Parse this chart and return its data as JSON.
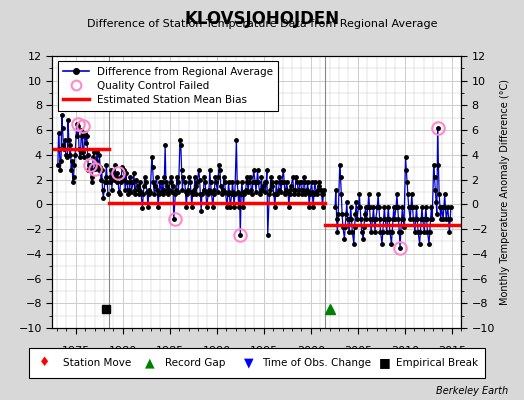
{
  "title": "KLOVSJOHOJDEN",
  "subtitle": "Difference of Station Temperature Data from Regional Average",
  "ylabel_right": "Monthly Temperature Anomaly Difference (°C)",
  "credit": "Berkeley Earth",
  "xlim": [
    1972.5,
    2016.0
  ],
  "ylim": [
    -10,
    12
  ],
  "yticks": [
    -10,
    -8,
    -6,
    -4,
    -2,
    0,
    2,
    4,
    6,
    8,
    10,
    12
  ],
  "xticks": [
    1975,
    1980,
    1985,
    1990,
    1995,
    2000,
    2005,
    2010,
    2015
  ],
  "bg_color": "#d8d8d8",
  "plot_bg_color": "#ffffff",
  "grid_color": "#cccccc",
  "segment1_bias": 4.5,
  "segment1_start": 1972.5,
  "segment1_end": 1978.5,
  "segment2_bias": 0.15,
  "segment2_start": 1978.5,
  "segment2_end": 2001.5,
  "segment3_bias": -1.7,
  "segment3_start": 2001.5,
  "segment3_end": 2016.0,
  "vertical_line1": 1978.5,
  "vertical_line2": 2001.5,
  "empirical_break_x": 1978.25,
  "record_gap_x": 2002.0,
  "line_color": "#0000cc",
  "dot_color": "#000000",
  "qc_failed_points": [
    [
      1975.25,
      6.5
    ],
    [
      1975.75,
      6.3
    ],
    [
      1976.5,
      3.2
    ],
    [
      1977.0,
      2.9
    ],
    [
      1979.5,
      2.5
    ],
    [
      1985.5,
      -1.2
    ],
    [
      1992.5,
      -2.5
    ],
    [
      2009.5,
      -3.5
    ],
    [
      2013.5,
      6.2
    ]
  ],
  "seg1_data": [
    [
      1973.083,
      3.2
    ],
    [
      1973.167,
      5.8
    ],
    [
      1973.25,
      4.5
    ],
    [
      1973.333,
      2.8
    ],
    [
      1973.417,
      3.5
    ],
    [
      1973.5,
      7.2
    ],
    [
      1973.583,
      6.2
    ],
    [
      1973.667,
      4.8
    ],
    [
      1973.75,
      4.5
    ],
    [
      1973.833,
      5.2
    ],
    [
      1973.917,
      4.0
    ],
    [
      1974.083,
      3.8
    ],
    [
      1974.167,
      6.8
    ],
    [
      1974.25,
      5.2
    ],
    [
      1974.333,
      4.0
    ],
    [
      1974.417,
      4.8
    ],
    [
      1974.5,
      2.8
    ],
    [
      1974.583,
      3.5
    ],
    [
      1974.667,
      1.8
    ],
    [
      1974.75,
      2.2
    ],
    [
      1974.833,
      3.2
    ],
    [
      1974.917,
      4.0
    ],
    [
      1975.083,
      6.5
    ],
    [
      1975.167,
      5.5
    ],
    [
      1975.25,
      6.3
    ],
    [
      1975.333,
      4.5
    ],
    [
      1975.417,
      3.8
    ],
    [
      1975.5,
      4.2
    ],
    [
      1975.583,
      6.0
    ],
    [
      1975.667,
      5.5
    ],
    [
      1975.75,
      4.2
    ],
    [
      1975.833,
      3.8
    ],
    [
      1975.917,
      5.8
    ],
    [
      1976.083,
      5.0
    ],
    [
      1976.167,
      5.5
    ],
    [
      1976.25,
      4.0
    ],
    [
      1976.333,
      2.8
    ],
    [
      1976.417,
      3.2
    ],
    [
      1976.5,
      3.2
    ],
    [
      1976.583,
      2.8
    ],
    [
      1976.667,
      1.8
    ],
    [
      1976.75,
      2.2
    ],
    [
      1976.833,
      3.8
    ],
    [
      1976.917,
      4.2
    ],
    [
      1977.083,
      2.9
    ],
    [
      1977.167,
      3.5
    ],
    [
      1977.25,
      4.2
    ],
    [
      1977.333,
      3.2
    ],
    [
      1977.417,
      2.8
    ],
    [
      1977.5,
      4.0
    ],
    [
      1977.583,
      3.0
    ],
    [
      1977.667,
      2.0
    ],
    [
      1977.75,
      2.8
    ],
    [
      1977.833,
      1.2
    ],
    [
      1977.917,
      0.5
    ],
    [
      1978.083,
      1.8
    ],
    [
      1978.167,
      2.2
    ],
    [
      1978.25,
      3.2
    ],
    [
      1978.333,
      1.8
    ],
    [
      1978.417,
      0.8
    ]
  ],
  "seg2_data": [
    [
      1978.583,
      2.2
    ],
    [
      1978.667,
      1.8
    ],
    [
      1978.75,
      2.8
    ],
    [
      1978.833,
      1.2
    ],
    [
      1978.917,
      2.5
    ],
    [
      1979.083,
      2.0
    ],
    [
      1979.167,
      3.2
    ],
    [
      1979.25,
      2.2
    ],
    [
      1979.333,
      1.8
    ],
    [
      1979.417,
      2.5
    ],
    [
      1979.583,
      1.0
    ],
    [
      1979.667,
      0.8
    ],
    [
      1979.75,
      1.8
    ],
    [
      1979.833,
      2.2
    ],
    [
      1979.917,
      3.0
    ],
    [
      1980.083,
      2.8
    ],
    [
      1980.167,
      2.0
    ],
    [
      1980.25,
      1.2
    ],
    [
      1980.333,
      2.5
    ],
    [
      1980.417,
      1.8
    ],
    [
      1980.583,
      0.8
    ],
    [
      1980.667,
      1.2
    ],
    [
      1980.75,
      2.2
    ],
    [
      1980.833,
      1.8
    ],
    [
      1980.917,
      1.0
    ],
    [
      1981.083,
      1.8
    ],
    [
      1981.167,
      2.5
    ],
    [
      1981.25,
      1.2
    ],
    [
      1981.333,
      0.8
    ],
    [
      1981.417,
      2.0
    ],
    [
      1981.583,
      1.5
    ],
    [
      1981.667,
      0.8
    ],
    [
      1981.75,
      1.2
    ],
    [
      1981.833,
      1.8
    ],
    [
      1981.917,
      1.0
    ],
    [
      1982.083,
      -0.3
    ],
    [
      1982.167,
      0.8
    ],
    [
      1982.25,
      1.5
    ],
    [
      1982.333,
      2.2
    ],
    [
      1982.417,
      1.8
    ],
    [
      1982.583,
      1.0
    ],
    [
      1982.667,
      -0.2
    ],
    [
      1982.75,
      0.8
    ],
    [
      1982.833,
      1.2
    ],
    [
      1982.917,
      1.0
    ],
    [
      1983.083,
      3.8
    ],
    [
      1983.167,
      3.0
    ],
    [
      1983.25,
      1.8
    ],
    [
      1983.333,
      0.8
    ],
    [
      1983.417,
      1.5
    ],
    [
      1983.583,
      2.2
    ],
    [
      1983.667,
      1.2
    ],
    [
      1983.75,
      -0.2
    ],
    [
      1983.833,
      0.8
    ],
    [
      1983.917,
      1.8
    ],
    [
      1984.083,
      1.0
    ],
    [
      1984.167,
      1.8
    ],
    [
      1984.25,
      0.8
    ],
    [
      1984.333,
      1.2
    ],
    [
      1984.417,
      2.2
    ],
    [
      1984.5,
      4.8
    ],
    [
      1984.583,
      1.8
    ],
    [
      1984.667,
      1.0
    ],
    [
      1984.75,
      1.5
    ],
    [
      1984.833,
      0.8
    ],
    [
      1984.917,
      1.2
    ],
    [
      1985.083,
      2.2
    ],
    [
      1985.167,
      1.8
    ],
    [
      1985.25,
      1.0
    ],
    [
      1985.333,
      1.5
    ],
    [
      1985.417,
      -1.2
    ],
    [
      1985.583,
      0.8
    ],
    [
      1985.667,
      1.2
    ],
    [
      1985.75,
      2.2
    ],
    [
      1985.833,
      1.8
    ],
    [
      1985.917,
      1.0
    ],
    [
      1986.083,
      5.2
    ],
    [
      1986.167,
      4.8
    ],
    [
      1986.25,
      2.8
    ],
    [
      1986.333,
      1.2
    ],
    [
      1986.417,
      2.2
    ],
    [
      1986.583,
      1.8
    ],
    [
      1986.667,
      1.0
    ],
    [
      1986.75,
      -0.2
    ],
    [
      1986.833,
      0.8
    ],
    [
      1986.917,
      1.2
    ],
    [
      1987.083,
      2.2
    ],
    [
      1987.167,
      1.8
    ],
    [
      1987.25,
      1.0
    ],
    [
      1987.333,
      -0.2
    ],
    [
      1987.417,
      0.8
    ],
    [
      1987.583,
      1.2
    ],
    [
      1987.667,
      2.2
    ],
    [
      1987.75,
      1.5
    ],
    [
      1987.833,
      0.8
    ],
    [
      1987.917,
      1.8
    ],
    [
      1988.083,
      2.8
    ],
    [
      1988.167,
      2.0
    ],
    [
      1988.25,
      0.8
    ],
    [
      1988.333,
      -0.5
    ],
    [
      1988.417,
      0.8
    ],
    [
      1988.583,
      1.2
    ],
    [
      1988.667,
      2.2
    ],
    [
      1988.75,
      1.8
    ],
    [
      1988.833,
      1.0
    ],
    [
      1988.917,
      -0.2
    ],
    [
      1989.083,
      0.8
    ],
    [
      1989.167,
      1.2
    ],
    [
      1989.25,
      2.8
    ],
    [
      1989.333,
      1.8
    ],
    [
      1989.417,
      1.0
    ],
    [
      1989.583,
      -0.2
    ],
    [
      1989.667,
      0.8
    ],
    [
      1989.75,
      1.2
    ],
    [
      1989.833,
      2.2
    ],
    [
      1989.917,
      1.8
    ],
    [
      1990.083,
      1.0
    ],
    [
      1990.167,
      2.2
    ],
    [
      1990.25,
      3.2
    ],
    [
      1990.333,
      2.8
    ],
    [
      1990.417,
      1.5
    ],
    [
      1990.583,
      0.8
    ],
    [
      1990.667,
      1.2
    ],
    [
      1990.75,
      2.2
    ],
    [
      1990.833,
      1.8
    ],
    [
      1990.917,
      1.0
    ],
    [
      1991.083,
      -0.2
    ],
    [
      1991.167,
      0.8
    ],
    [
      1991.25,
      1.8
    ],
    [
      1991.333,
      1.0
    ],
    [
      1991.417,
      -0.2
    ],
    [
      1991.583,
      0.8
    ],
    [
      1991.667,
      1.8
    ],
    [
      1991.75,
      1.0
    ],
    [
      1991.833,
      -0.2
    ],
    [
      1991.917,
      0.8
    ],
    [
      1992.083,
      5.2
    ],
    [
      1992.167,
      1.8
    ],
    [
      1992.25,
      1.0
    ],
    [
      1992.333,
      -0.2
    ],
    [
      1992.417,
      0.8
    ],
    [
      1992.5,
      -2.5
    ],
    [
      1992.583,
      0.8
    ],
    [
      1992.667,
      1.8
    ],
    [
      1992.75,
      1.0
    ],
    [
      1992.833,
      -0.2
    ],
    [
      1992.917,
      0.8
    ],
    [
      1993.083,
      1.2
    ],
    [
      1993.167,
      2.2
    ],
    [
      1993.25,
      1.8
    ],
    [
      1993.333,
      1.0
    ],
    [
      1993.417,
      1.8
    ],
    [
      1993.583,
      2.2
    ],
    [
      1993.667,
      1.2
    ],
    [
      1993.75,
      0.8
    ],
    [
      1993.833,
      1.8
    ],
    [
      1993.917,
      2.8
    ],
    [
      1994.083,
      1.8
    ],
    [
      1994.167,
      1.0
    ],
    [
      1994.25,
      1.8
    ],
    [
      1994.333,
      2.8
    ],
    [
      1994.417,
      1.8
    ],
    [
      1994.583,
      0.8
    ],
    [
      1994.667,
      1.2
    ],
    [
      1994.75,
      2.2
    ],
    [
      1994.833,
      1.2
    ],
    [
      1994.917,
      1.5
    ],
    [
      1995.083,
      1.8
    ],
    [
      1995.167,
      1.0
    ],
    [
      1995.25,
      1.8
    ],
    [
      1995.333,
      2.8
    ],
    [
      1995.417,
      -2.5
    ],
    [
      1995.583,
      0.8
    ],
    [
      1995.667,
      1.2
    ],
    [
      1995.75,
      2.2
    ],
    [
      1995.833,
      1.5
    ],
    [
      1995.917,
      1.8
    ],
    [
      1996.083,
      0.8
    ],
    [
      1996.167,
      -0.2
    ],
    [
      1996.25,
      0.8
    ],
    [
      1996.333,
      1.8
    ],
    [
      1996.417,
      0.8
    ],
    [
      1996.583,
      1.2
    ],
    [
      1996.667,
      2.2
    ],
    [
      1996.75,
      1.8
    ],
    [
      1996.833,
      1.0
    ],
    [
      1996.917,
      1.8
    ],
    [
      1997.083,
      2.8
    ],
    [
      1997.167,
      1.8
    ],
    [
      1997.25,
      0.8
    ],
    [
      1997.333,
      1.2
    ],
    [
      1997.417,
      1.8
    ],
    [
      1997.583,
      1.0
    ],
    [
      1997.667,
      -0.2
    ],
    [
      1997.75,
      0.8
    ],
    [
      1997.833,
      1.2
    ],
    [
      1997.917,
      1.5
    ],
    [
      1998.083,
      2.2
    ],
    [
      1998.167,
      1.2
    ],
    [
      1998.25,
      0.8
    ],
    [
      1998.333,
      1.2
    ],
    [
      1998.417,
      2.2
    ],
    [
      1998.583,
      1.8
    ],
    [
      1998.667,
      0.8
    ],
    [
      1998.75,
      1.2
    ],
    [
      1998.833,
      1.8
    ],
    [
      1998.917,
      1.8
    ],
    [
      1999.083,
      0.8
    ],
    [
      1999.167,
      1.2
    ],
    [
      1999.25,
      2.2
    ],
    [
      1999.333,
      1.8
    ],
    [
      1999.417,
      0.8
    ],
    [
      1999.583,
      1.2
    ],
    [
      1999.667,
      1.8
    ],
    [
      1999.75,
      1.0
    ],
    [
      1999.833,
      -0.2
    ],
    [
      1999.917,
      0.8
    ],
    [
      2000.083,
      1.8
    ],
    [
      2000.167,
      1.0
    ],
    [
      2000.25,
      -0.2
    ],
    [
      2000.333,
      0.8
    ],
    [
      2000.417,
      1.8
    ],
    [
      2000.583,
      1.0
    ],
    [
      2000.667,
      0.8
    ],
    [
      2000.75,
      1.2
    ],
    [
      2000.833,
      1.8
    ],
    [
      2000.917,
      1.5
    ],
    [
      2001.083,
      1.2
    ],
    [
      2001.167,
      0.8
    ],
    [
      2001.25,
      -0.2
    ],
    [
      2001.333,
      0.8
    ],
    [
      2001.417,
      1.2
    ]
  ],
  "seg3_data": [
    [
      2002.583,
      -0.2
    ],
    [
      2002.667,
      1.2
    ],
    [
      2002.75,
      -1.2
    ],
    [
      2002.833,
      -2.2
    ],
    [
      2002.917,
      -0.8
    ],
    [
      2003.083,
      3.2
    ],
    [
      2003.167,
      2.2
    ],
    [
      2003.25,
      0.8
    ],
    [
      2003.333,
      -0.8
    ],
    [
      2003.417,
      -1.8
    ],
    [
      2003.583,
      -2.8
    ],
    [
      2003.667,
      -1.8
    ],
    [
      2003.75,
      -0.8
    ],
    [
      2003.833,
      0.2
    ],
    [
      2003.917,
      -1.2
    ],
    [
      2004.083,
      -2.2
    ],
    [
      2004.167,
      -1.2
    ],
    [
      2004.25,
      -0.2
    ],
    [
      2004.333,
      -1.2
    ],
    [
      2004.417,
      -2.2
    ],
    [
      2004.583,
      -3.2
    ],
    [
      2004.667,
      -1.8
    ],
    [
      2004.75,
      -0.8
    ],
    [
      2004.833,
      0.2
    ],
    [
      2004.917,
      -1.2
    ],
    [
      2005.083,
      -0.2
    ],
    [
      2005.167,
      0.8
    ],
    [
      2005.25,
      -0.2
    ],
    [
      2005.333,
      -1.2
    ],
    [
      2005.417,
      -2.2
    ],
    [
      2005.583,
      -2.8
    ],
    [
      2005.667,
      -1.8
    ],
    [
      2005.75,
      -0.8
    ],
    [
      2005.833,
      -0.2
    ],
    [
      2005.917,
      -1.2
    ],
    [
      2006.083,
      -0.2
    ],
    [
      2006.167,
      0.8
    ],
    [
      2006.25,
      -0.2
    ],
    [
      2006.333,
      -1.2
    ],
    [
      2006.417,
      -2.2
    ],
    [
      2006.583,
      -1.2
    ],
    [
      2006.667,
      -0.2
    ],
    [
      2006.75,
      -1.2
    ],
    [
      2006.833,
      -2.2
    ],
    [
      2006.917,
      -1.2
    ],
    [
      2007.083,
      -0.2
    ],
    [
      2007.167,
      0.8
    ],
    [
      2007.25,
      -0.2
    ],
    [
      2007.333,
      -1.2
    ],
    [
      2007.417,
      -2.2
    ],
    [
      2007.583,
      -3.2
    ],
    [
      2007.667,
      -2.2
    ],
    [
      2007.75,
      -1.2
    ],
    [
      2007.833,
      -0.2
    ],
    [
      2007.917,
      -1.2
    ],
    [
      2008.083,
      -2.2
    ],
    [
      2008.167,
      -1.2
    ],
    [
      2008.25,
      -0.2
    ],
    [
      2008.333,
      -1.2
    ],
    [
      2008.417,
      -2.2
    ],
    [
      2008.583,
      -3.2
    ],
    [
      2008.667,
      -2.2
    ],
    [
      2008.75,
      -1.2
    ],
    [
      2008.833,
      -0.2
    ],
    [
      2008.917,
      -1.2
    ],
    [
      2009.083,
      -0.2
    ],
    [
      2009.167,
      0.8
    ],
    [
      2009.25,
      -0.2
    ],
    [
      2009.333,
      -1.2
    ],
    [
      2009.417,
      -2.2
    ],
    [
      2009.5,
      -3.5
    ],
    [
      2009.583,
      -2.2
    ],
    [
      2009.667,
      -1.2
    ],
    [
      2009.75,
      -0.2
    ],
    [
      2009.833,
      -1.2
    ],
    [
      2009.917,
      -1.8
    ],
    [
      2010.083,
      3.8
    ],
    [
      2010.167,
      2.8
    ],
    [
      2010.25,
      1.8
    ],
    [
      2010.333,
      0.8
    ],
    [
      2010.417,
      -0.2
    ],
    [
      2010.583,
      -1.2
    ],
    [
      2010.667,
      -0.2
    ],
    [
      2010.75,
      0.8
    ],
    [
      2010.833,
      -0.2
    ],
    [
      2010.917,
      -1.2
    ],
    [
      2011.083,
      -2.2
    ],
    [
      2011.167,
      -1.2
    ],
    [
      2011.25,
      -0.2
    ],
    [
      2011.333,
      -1.2
    ],
    [
      2011.417,
      -2.2
    ],
    [
      2011.583,
      -3.2
    ],
    [
      2011.667,
      -2.2
    ],
    [
      2011.75,
      -1.2
    ],
    [
      2011.833,
      -0.2
    ],
    [
      2011.917,
      -1.2
    ],
    [
      2012.083,
      -2.2
    ],
    [
      2012.167,
      -1.2
    ],
    [
      2012.25,
      -0.2
    ],
    [
      2012.333,
      -1.2
    ],
    [
      2012.417,
      -2.2
    ],
    [
      2012.583,
      -3.2
    ],
    [
      2012.667,
      -2.2
    ],
    [
      2012.75,
      -1.2
    ],
    [
      2012.833,
      -0.2
    ],
    [
      2012.917,
      -1.2
    ],
    [
      2013.083,
      3.2
    ],
    [
      2013.167,
      2.2
    ],
    [
      2013.25,
      1.2
    ],
    [
      2013.333,
      0.2
    ],
    [
      2013.417,
      -0.8
    ],
    [
      2013.5,
      6.2
    ],
    [
      2013.583,
      3.2
    ],
    [
      2013.667,
      0.8
    ],
    [
      2013.75,
      -0.2
    ],
    [
      2013.833,
      -1.2
    ],
    [
      2013.917,
      -0.2
    ],
    [
      2014.083,
      -1.2
    ],
    [
      2014.167,
      -0.2
    ],
    [
      2014.25,
      0.8
    ],
    [
      2014.333,
      -0.2
    ],
    [
      2014.417,
      -1.2
    ],
    [
      2014.583,
      -0.2
    ],
    [
      2014.667,
      -1.2
    ],
    [
      2014.75,
      -2.2
    ],
    [
      2014.833,
      -1.2
    ],
    [
      2014.917,
      -0.2
    ]
  ]
}
